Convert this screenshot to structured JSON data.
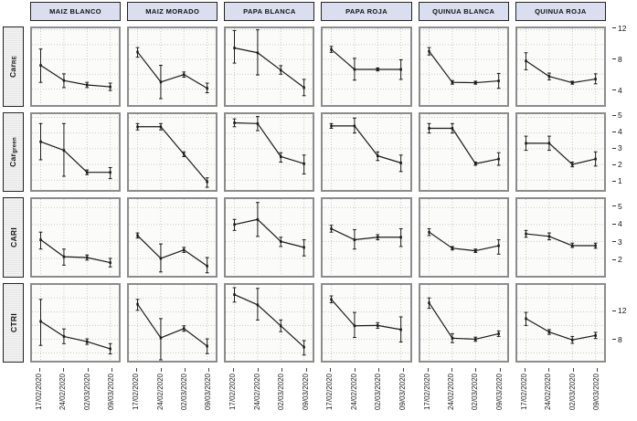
{
  "styles": {
    "strip_bg": "#dbdeee",
    "row_strip_bg": "#e7e7e7",
    "line_color": "#1a1a1a",
    "grid_color": "#c9c9c9",
    "panel_bg": "#fbfbfa",
    "panel_border": "#8c8c8c",
    "strip_border": "#222222"
  },
  "chart_data": {
    "type": "line",
    "title": "",
    "xlabel": "",
    "ylabel": "",
    "legend": "none",
    "grid": "dotted",
    "error_bars": true,
    "x_categories": [
      "17/02/2020",
      "24/02/2020",
      "02/03/2020",
      "09/03/2020"
    ],
    "col_facets": [
      "MAIZ BLANCO",
      "MAIZ MORADO",
      "PAPA BLANCA",
      "PAPA ROJA",
      "QUINUA BLANCA",
      "QUINUA ROJA"
    ],
    "row_facets": [
      {
        "label_main": "Car",
        "label_sub": "RE",
        "ticks": [
          12,
          8,
          4
        ],
        "ylim": [
          1.9,
          12.2
        ],
        "gridlines": [
          2,
          4,
          6,
          8,
          10,
          12
        ]
      },
      {
        "label_main": "Car",
        "label_sub": "green",
        "ticks": [
          5,
          4,
          3,
          2,
          1
        ],
        "ylim": [
          0.35,
          5.2
        ],
        "gridlines": [
          1,
          2,
          3,
          4,
          5
        ]
      },
      {
        "label_main": "CARI",
        "label_sub": "",
        "ticks": [
          5,
          4,
          3,
          2
        ],
        "ylim": [
          1.0,
          5.5
        ],
        "gridlines": [
          2,
          3,
          4,
          5
        ]
      },
      {
        "label_main": "CTRI",
        "label_sub": "",
        "ticks": [
          12,
          8
        ],
        "ylim": [
          4.8,
          15.9
        ],
        "gridlines": [
          6,
          8,
          10,
          12,
          14
        ]
      }
    ],
    "panels": [
      {
        "row": "Car_RE",
        "col": "MAIZ BLANCO",
        "values": [
          7.2,
          5.15,
          4.55,
          4.3
        ],
        "err_lo": [
          4.9,
          4.2,
          4.2,
          3.8
        ],
        "err_hi": [
          9.4,
          6.05,
          4.9,
          4.8
        ]
      },
      {
        "row": "Car_RE",
        "col": "MAIZ MORADO",
        "values": [
          9.0,
          4.95,
          5.95,
          4.1
        ],
        "err_lo": [
          8.3,
          2.7,
          5.6,
          3.5
        ],
        "err_hi": [
          9.6,
          7.2,
          6.3,
          4.8
        ]
      },
      {
        "row": "Car_RE",
        "col": "PAPA BLANCA",
        "values": [
          9.55,
          8.9,
          6.55,
          4.2
        ],
        "err_lo": [
          7.5,
          5.9,
          6.0,
          3.1
        ],
        "err_hi": [
          11.9,
          12.0,
          7.15,
          5.3
        ]
      },
      {
        "row": "Car_RE",
        "col": "PAPA ROJA",
        "values": [
          9.35,
          6.65,
          6.65,
          6.65
        ],
        "err_lo": [
          8.95,
          5.2,
          6.45,
          5.3
        ],
        "err_hi": [
          9.75,
          8.15,
          6.85,
          7.95
        ]
      },
      {
        "row": "Car_RE",
        "col": "QUINUA BLANCA",
        "values": [
          9.1,
          4.9,
          4.85,
          5.1
        ],
        "err_lo": [
          8.6,
          4.65,
          4.65,
          4.1
        ],
        "err_hi": [
          9.6,
          5.15,
          5.05,
          6.1
        ]
      },
      {
        "row": "Car_RE",
        "col": "QUINUA ROJA",
        "values": [
          7.8,
          5.7,
          4.85,
          5.35
        ],
        "err_lo": [
          6.6,
          5.25,
          4.65,
          4.7
        ],
        "err_hi": [
          8.9,
          6.15,
          5.05,
          6.05
        ]
      },
      {
        "row": "Car_green",
        "col": "MAIZ BLANCO",
        "values": [
          3.45,
          2.9,
          1.5,
          1.5
        ],
        "err_lo": [
          2.3,
          1.25,
          1.35,
          1.1
        ],
        "err_hi": [
          4.6,
          4.6,
          1.65,
          1.8
        ]
      },
      {
        "row": "Car_green",
        "col": "MAIZ MORADO",
        "values": [
          4.4,
          4.4,
          2.65,
          0.9
        ],
        "err_lo": [
          4.2,
          4.2,
          2.5,
          0.55
        ],
        "err_hi": [
          4.6,
          4.6,
          2.8,
          1.15
        ]
      },
      {
        "row": "Car_green",
        "col": "PAPA BLANCA",
        "values": [
          4.65,
          4.6,
          2.5,
          2.05
        ],
        "err_lo": [
          4.4,
          4.15,
          2.15,
          1.4
        ],
        "err_hi": [
          4.9,
          5.05,
          2.75,
          2.6
        ]
      },
      {
        "row": "Car_green",
        "col": "PAPA ROJA",
        "values": [
          4.45,
          4.45,
          2.55,
          2.1
        ],
        "err_lo": [
          4.3,
          4.0,
          2.25,
          1.55
        ],
        "err_hi": [
          4.6,
          4.95,
          2.8,
          2.6
        ]
      },
      {
        "row": "Car_green",
        "col": "QUINUA BLANCA",
        "values": [
          4.3,
          4.3,
          2.05,
          2.35
        ],
        "err_lo": [
          4.0,
          4.0,
          1.95,
          1.95
        ],
        "err_hi": [
          4.6,
          4.6,
          2.15,
          2.75
        ]
      },
      {
        "row": "Car_green",
        "col": "QUINUA ROJA",
        "values": [
          3.35,
          3.35,
          2.0,
          2.35
        ],
        "err_lo": [
          2.9,
          2.9,
          1.85,
          1.9
        ],
        "err_hi": [
          3.8,
          3.8,
          2.15,
          2.8
        ]
      },
      {
        "row": "CARI",
        "col": "MAIZ BLANCO",
        "values": [
          3.1,
          2.1,
          2.05,
          1.75
        ],
        "err_lo": [
          2.55,
          1.6,
          1.9,
          1.5
        ],
        "err_hi": [
          3.55,
          2.55,
          2.2,
          2.0
        ]
      },
      {
        "row": "CARI",
        "col": "MAIZ MORADO",
        "values": [
          3.35,
          2.0,
          2.5,
          1.55
        ],
        "err_lo": [
          3.2,
          1.2,
          2.35,
          1.15
        ],
        "err_hi": [
          3.5,
          2.85,
          2.65,
          2.05
        ]
      },
      {
        "row": "CARI",
        "col": "PAPA BLANCA",
        "values": [
          4.0,
          4.3,
          3.0,
          2.65
        ],
        "err_lo": [
          3.65,
          3.3,
          2.7,
          2.15
        ],
        "err_hi": [
          4.3,
          5.3,
          3.25,
          3.1
        ]
      },
      {
        "row": "CARI",
        "col": "PAPA ROJA",
        "values": [
          3.75,
          3.1,
          3.25,
          3.25
        ],
        "err_lo": [
          3.55,
          2.55,
          3.1,
          2.7
        ],
        "err_hi": [
          3.95,
          3.7,
          3.4,
          3.75
        ]
      },
      {
        "row": "CARI",
        "col": "QUINUA BLANCA",
        "values": [
          3.55,
          2.6,
          2.45,
          2.75
        ],
        "err_lo": [
          3.35,
          2.5,
          2.35,
          2.25
        ],
        "err_hi": [
          3.75,
          2.7,
          2.55,
          3.1
        ]
      },
      {
        "row": "CARI",
        "col": "QUINUA ROJA",
        "values": [
          3.45,
          3.3,
          2.75,
          2.75
        ],
        "err_lo": [
          3.25,
          3.1,
          2.65,
          2.6
        ],
        "err_hi": [
          3.65,
          3.5,
          2.9,
          2.9
        ]
      },
      {
        "row": "CTRI",
        "col": "MAIZ BLANCO",
        "values": [
          10.6,
          8.4,
          7.65,
          6.6
        ],
        "err_lo": [
          7.1,
          7.35,
          7.25,
          5.85
        ],
        "err_hi": [
          13.8,
          9.5,
          8.05,
          7.35
        ]
      },
      {
        "row": "CTRI",
        "col": "MAIZ MORADO",
        "values": [
          13.1,
          8.2,
          9.55,
          7.0
        ],
        "err_lo": [
          12.2,
          5.0,
          9.15,
          5.9
        ],
        "err_hi": [
          13.8,
          11.0,
          9.95,
          8.05
        ]
      },
      {
        "row": "CTRI",
        "col": "PAPA BLANCA",
        "values": [
          14.5,
          13.0,
          9.95,
          6.85
        ],
        "err_lo": [
          13.4,
          10.8,
          9.1,
          5.7
        ],
        "err_hi": [
          15.5,
          15.4,
          10.8,
          7.8
        ]
      },
      {
        "row": "CTRI",
        "col": "PAPA ROJA",
        "values": [
          13.8,
          9.95,
          10.0,
          9.4
        ],
        "err_lo": [
          13.3,
          8.25,
          9.6,
          7.6
        ],
        "err_hi": [
          14.3,
          11.9,
          10.4,
          11.25
        ]
      },
      {
        "row": "CTRI",
        "col": "QUINUA BLANCA",
        "values": [
          13.3,
          8.15,
          8.0,
          8.8
        ],
        "err_lo": [
          12.5,
          7.5,
          7.7,
          8.4
        ],
        "err_hi": [
          14.0,
          8.8,
          8.3,
          9.2
        ]
      },
      {
        "row": "CTRI",
        "col": "QUINUA ROJA",
        "values": [
          11.0,
          9.05,
          7.9,
          8.55
        ],
        "err_lo": [
          10.0,
          8.7,
          7.4,
          8.1
        ],
        "err_hi": [
          11.9,
          9.4,
          8.4,
          9.0
        ]
      }
    ]
  }
}
